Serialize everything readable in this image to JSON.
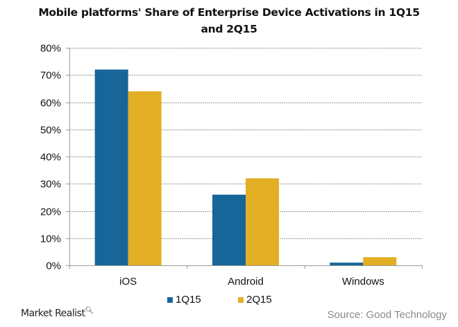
{
  "chart_data": {
    "type": "bar",
    "title": "Mobile platforms' Share of Enterprise Device Activations in 1Q15 and 2Q15",
    "title_lines": [
      "Mobile platforms' Share of Enterprise Device Activations in 1Q15",
      "and 2Q15"
    ],
    "categories": [
      "iOS",
      "Android",
      "Windows"
    ],
    "series": [
      {
        "name": "1Q15",
        "color": "#186699",
        "values": [
          72,
          26,
          1
        ]
      },
      {
        "name": "2Q15",
        "color": "#E2AE24",
        "values": [
          64,
          32,
          3
        ]
      }
    ],
    "xlabel": "",
    "ylabel": "",
    "ylim": [
      0,
      80
    ],
    "yticks": [
      0,
      10,
      20,
      30,
      40,
      50,
      60,
      70,
      80
    ],
    "ytick_labels": [
      "0%",
      "10%",
      "20%",
      "30%",
      "40%",
      "50%",
      "60%",
      "70%",
      "80%"
    ],
    "grid": true,
    "legend_position": "bottom-center"
  },
  "footer": {
    "brand": "Market Realist",
    "brand_icon": "magnifier-icon",
    "source": "Source: Good Technology"
  }
}
